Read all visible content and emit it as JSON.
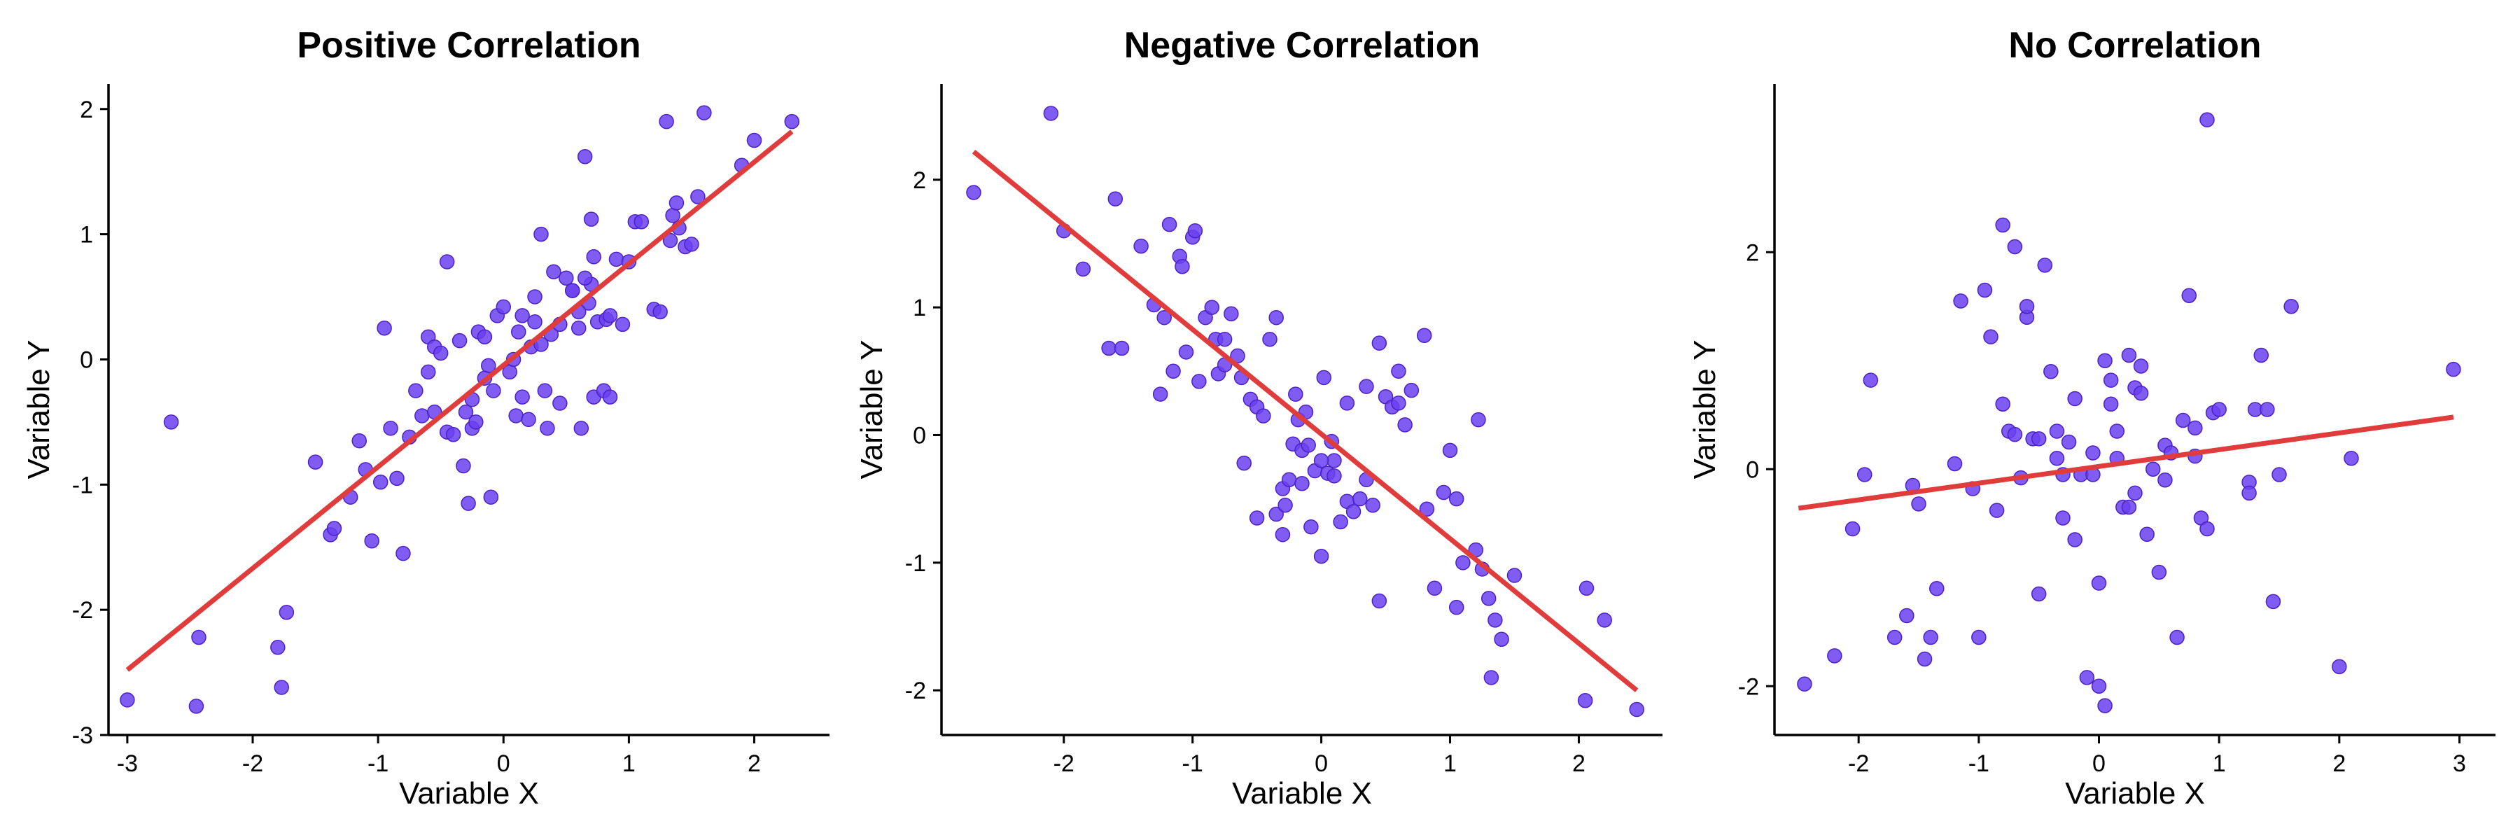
{
  "chart_data": [
    {
      "type": "scatter",
      "title": "Positive Correlation",
      "xlabel": "Variable X",
      "ylabel": "Variable Y",
      "xlim": [
        -3.15,
        2.6
      ],
      "ylim": [
        -3.0,
        2.2
      ],
      "xticks": [
        -3,
        -2,
        -1,
        0,
        1,
        2
      ],
      "yticks": [
        -3,
        -2,
        -1,
        0,
        1,
        2
      ],
      "xtick_labels": [
        "-3",
        "-2",
        "-1",
        "0",
        "1",
        "2"
      ],
      "ytick_labels": [
        "-3",
        "-2",
        "-1",
        "0",
        "1",
        "2"
      ],
      "fit_line": {
        "x": [
          -3.0,
          2.3
        ],
        "y": [
          -2.48,
          1.82
        ]
      },
      "x": [
        -3.0,
        -2.65,
        -2.45,
        -2.43,
        -1.8,
        -1.77,
        -1.73,
        -1.5,
        -1.38,
        -1.35,
        -1.22,
        -1.15,
        -1.1,
        -1.05,
        -0.98,
        -0.95,
        -0.9,
        -0.85,
        -0.8,
        -0.75,
        -0.7,
        -0.65,
        -0.6,
        -0.55,
        -0.5,
        -0.45,
        -0.4,
        -0.35,
        -0.32,
        -0.3,
        -0.28,
        -0.25,
        -0.22,
        -0.2,
        -0.15,
        -0.12,
        -0.1,
        -0.08,
        -0.05,
        0.0,
        0.05,
        0.08,
        0.1,
        0.12,
        0.15,
        0.2,
        0.22,
        0.25,
        0.3,
        0.33,
        0.35,
        0.38,
        0.4,
        0.45,
        0.5,
        0.55,
        0.6,
        0.62,
        0.65,
        0.68,
        0.7,
        0.72,
        0.75,
        0.8,
        0.82,
        0.85,
        0.9,
        0.95,
        1.0,
        1.05,
        1.2,
        1.25,
        1.3,
        1.33,
        1.35,
        1.38,
        1.4,
        1.45,
        1.5,
        1.55,
        1.6,
        1.9,
        2.0,
        2.3,
        0.65,
        0.45,
        -0.55,
        0.7,
        1.1,
        0.3,
        -0.6,
        0.55,
        -0.25,
        0.15,
        -0.15,
        0.25,
        -0.45,
        0.85,
        0.6,
        0.72
      ],
      "y": [
        -2.72,
        -0.5,
        -2.77,
        -2.22,
        -2.3,
        -2.62,
        -2.02,
        -0.82,
        -1.4,
        -1.35,
        -1.1,
        -0.65,
        -0.88,
        -1.45,
        -0.98,
        0.25,
        -0.55,
        -0.95,
        -1.55,
        -0.62,
        -0.25,
        -0.45,
        0.18,
        0.1,
        0.05,
        -0.58,
        -0.6,
        0.15,
        -0.85,
        -0.42,
        -1.15,
        -0.55,
        -0.5,
        0.22,
        0.18,
        -0.05,
        -1.1,
        -0.25,
        0.35,
        0.42,
        -0.1,
        0.0,
        -0.45,
        0.22,
        0.35,
        -0.48,
        0.1,
        0.3,
        1.0,
        -0.25,
        -0.55,
        0.2,
        0.7,
        -0.35,
        0.65,
        0.55,
        0.25,
        -0.55,
        1.62,
        0.45,
        0.6,
        -0.3,
        0.3,
        -0.25,
        0.32,
        -0.3,
        0.8,
        0.28,
        0.78,
        1.1,
        0.4,
        0.38,
        1.9,
        0.95,
        1.15,
        1.25,
        1.05,
        0.9,
        0.92,
        1.3,
        1.97,
        1.55,
        1.75,
        1.9,
        0.65,
        0.28,
        -0.42,
        1.12,
        1.1,
        0.12,
        -0.1,
        0.55,
        -0.32,
        -0.3,
        -0.15,
        0.5,
        0.78,
        0.35,
        0.38,
        0.82
      ]
    },
    {
      "type": "scatter",
      "title": "Negative Correlation",
      "xlabel": "Variable X",
      "ylabel": "Variable Y",
      "xlim": [
        -2.95,
        2.65
      ],
      "ylim": [
        -2.35,
        2.75
      ],
      "xticks": [
        -2,
        -1,
        0,
        1,
        2
      ],
      "yticks": [
        -2,
        -1,
        0,
        1,
        2
      ],
      "xtick_labels": [
        "-2",
        "-1",
        "0",
        "1",
        "2"
      ],
      "ytick_labels": [
        "-2",
        "-1",
        "0",
        "1",
        "2"
      ],
      "fit_line": {
        "x": [
          -2.7,
          2.45
        ],
        "y": [
          2.22,
          -2.0
        ]
      },
      "x": [
        -2.7,
        -2.1,
        -2.0,
        -1.85,
        -1.65,
        -1.6,
        -1.4,
        -1.3,
        -1.25,
        -1.22,
        -1.18,
        -1.15,
        -1.1,
        -1.08,
        -1.05,
        -1.0,
        -0.98,
        -0.95,
        -0.9,
        -0.85,
        -0.82,
        -0.8,
        -0.75,
        -0.7,
        -0.65,
        -0.62,
        -0.55,
        -0.5,
        -0.45,
        -0.4,
        -0.35,
        -0.3,
        -0.28,
        -0.25,
        -0.22,
        -0.2,
        -0.18,
        -0.15,
        -0.12,
        -0.1,
        -0.08,
        -0.05,
        0.0,
        0.02,
        0.05,
        0.08,
        0.1,
        0.15,
        0.2,
        0.25,
        0.3,
        0.35,
        0.4,
        0.45,
        0.5,
        0.55,
        0.6,
        0.65,
        0.7,
        0.8,
        0.82,
        0.88,
        0.95,
        1.0,
        1.05,
        1.1,
        1.2,
        1.25,
        1.3,
        1.35,
        1.4,
        1.5,
        2.05,
        2.06,
        2.2,
        2.45,
        -0.3,
        0.45,
        -0.5,
        0.1,
        1.22,
        1.32,
        -0.6,
        0.2,
        -0.35,
        0.0,
        0.35,
        -0.15,
        0.6,
        1.05,
        -1.55,
        -0.75
      ],
      "y": [
        1.9,
        2.52,
        1.6,
        1.3,
        0.68,
        1.85,
        1.48,
        1.02,
        0.32,
        0.92,
        1.65,
        0.5,
        1.4,
        1.32,
        0.65,
        1.55,
        1.6,
        0.42,
        0.92,
        1.0,
        0.75,
        0.48,
        0.55,
        0.95,
        0.62,
        0.45,
        0.28,
        0.22,
        0.15,
        0.75,
        -0.62,
        -0.42,
        -0.55,
        -0.35,
        -0.07,
        0.32,
        0.12,
        -0.12,
        0.18,
        -0.08,
        -0.72,
        -0.28,
        -0.95,
        0.45,
        -0.3,
        -0.05,
        -0.2,
        -0.68,
        -0.52,
        -0.6,
        -0.5,
        -0.35,
        -0.55,
        0.72,
        0.3,
        0.22,
        0.5,
        0.08,
        0.35,
        0.78,
        -0.58,
        -1.2,
        -0.45,
        -0.12,
        -1.35,
        -1.0,
        -0.9,
        -1.05,
        -1.28,
        -1.45,
        -1.6,
        -1.1,
        -2.08,
        -1.2,
        -1.45,
        -2.15,
        -0.78,
        -1.3,
        -0.65,
        -0.32,
        0.12,
        -1.9,
        -0.22,
        0.25,
        0.92,
        -0.2,
        0.38,
        -0.38,
        0.25,
        -0.5,
        0.68,
        0.75
      ]
    },
    {
      "type": "scatter",
      "title": "No Correlation",
      "xlabel": "Variable X",
      "ylabel": "Variable Y",
      "xlim": [
        -2.7,
        3.3
      ],
      "ylim": [
        -2.45,
        3.55
      ],
      "xticks": [
        -2,
        -1,
        0,
        1,
        2,
        3
      ],
      "yticks": [
        -2,
        0,
        2
      ],
      "xtick_labels": [
        "-2",
        "-1",
        "0",
        "1",
        "2",
        "3"
      ],
      "ytick_labels": [
        "-2",
        "0",
        "2"
      ],
      "fit_line": {
        "x": [
          -2.5,
          2.95
        ],
        "y": [
          -0.36,
          0.48
        ]
      },
      "x": [
        -2.45,
        -2.2,
        -2.05,
        -1.95,
        -1.9,
        -1.7,
        -1.6,
        -1.55,
        -1.5,
        -1.45,
        -1.35,
        -1.2,
        -1.15,
        -1.05,
        -1.0,
        -0.95,
        -0.9,
        -0.85,
        -0.8,
        -0.75,
        -0.7,
        -0.65,
        -0.6,
        -0.55,
        -0.5,
        -0.45,
        -0.4,
        -0.35,
        -0.3,
        -0.25,
        -0.2,
        -0.15,
        -0.1,
        -0.05,
        0.0,
        0.05,
        0.1,
        0.15,
        0.2,
        0.25,
        0.3,
        0.35,
        0.4,
        0.45,
        0.5,
        0.55,
        0.6,
        0.65,
        0.7,
        0.75,
        0.8,
        0.85,
        0.9,
        0.95,
        1.0,
        1.25,
        1.3,
        1.35,
        1.4,
        1.45,
        1.5,
        1.6,
        2.0,
        2.1,
        2.95,
        -0.05,
        0.0,
        0.05,
        -0.2,
        0.3,
        0.15,
        -0.35,
        0.9,
        -0.8,
        -0.7,
        -0.5,
        0.35,
        -0.3,
        0.25,
        1.25,
        -1.4,
        -0.6,
        0.1,
        0.55,
        0.8
      ],
      "y": [
        -1.98,
        -1.72,
        -0.55,
        -0.05,
        0.82,
        -1.55,
        -1.35,
        -0.15,
        -0.32,
        -1.75,
        -1.1,
        0.05,
        1.55,
        -0.18,
        -1.55,
        1.65,
        1.22,
        -0.38,
        2.25,
        0.35,
        2.05,
        -0.08,
        1.4,
        0.28,
        -1.15,
        1.88,
        0.9,
        0.35,
        -0.45,
        0.25,
        -0.65,
        -0.05,
        -1.92,
        0.15,
        -2.0,
        1.0,
        0.82,
        0.35,
        -0.35,
        1.05,
        0.75,
        0.95,
        -0.6,
        0.0,
        -0.95,
        0.22,
        0.15,
        -1.55,
        0.45,
        1.6,
        0.12,
        -0.45,
        3.22,
        0.52,
        0.55,
        -0.12,
        0.55,
        1.05,
        0.55,
        -1.22,
        -0.05,
        1.5,
        -1.82,
        0.1,
        0.92,
        -0.05,
        -1.05,
        -2.18,
        0.65,
        -0.22,
        0.1,
        0.1,
        -0.55,
        0.6,
        0.32,
        0.28,
        0.7,
        -0.05,
        -0.35,
        -0.22,
        -1.55,
        1.5,
        0.6,
        -0.1,
        0.38
      ],
      "_unused": null
    }
  ],
  "colors": {
    "point_fill": "#6a3ff0",
    "point_stroke": "#4b22c8",
    "fit_line": "#e03c3c",
    "axis": "#000000"
  }
}
